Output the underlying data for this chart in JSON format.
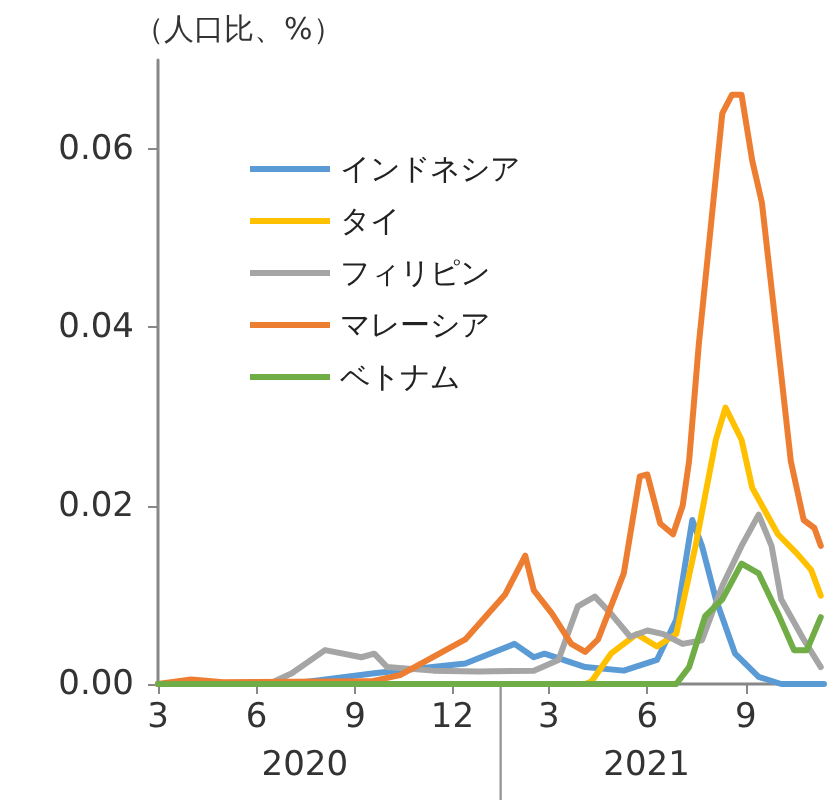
{
  "chart_data": {
    "type": "line",
    "ylabel": "（人口比、%）",
    "xlim": [
      "2020-03-01",
      "2021-11-13"
    ],
    "ylim": [
      0,
      0.07
    ],
    "xticks": [
      {
        "value": "2020-03",
        "label": "3"
      },
      {
        "value": "2020-06",
        "label": "6"
      },
      {
        "value": "2020-09",
        "label": "9"
      },
      {
        "value": "2020-12",
        "label": "12"
      },
      {
        "value": "2021-03",
        "label": "3"
      },
      {
        "value": "2021-06",
        "label": "6"
      },
      {
        "value": "2021-09",
        "label": "9"
      }
    ],
    "yticks": [
      {
        "value": 0,
        "label": "0.00"
      },
      {
        "value": 0.02,
        "label": "0.02"
      },
      {
        "value": 0.04,
        "label": "0.04"
      },
      {
        "value": 0.06,
        "label": "0.06"
      }
    ],
    "annotations": [
      "2020",
      "2021"
    ],
    "legend": "top left",
    "grid": false,
    "marker": "none",
    "line_style": "solid",
    "series": [
      {
        "name": "インドネシア",
        "color": "#5b9bd5",
        "x": [
          "2020-03-01",
          "2020-07-01",
          "2020-07-28",
          "2020-09-19",
          "2020-12-13",
          "2021-01-28",
          "2021-02-15",
          "2021-02-25",
          "2021-04-04",
          "2021-05-10",
          "2021-06-10",
          "2021-06-28",
          "2021-07-13",
          "2021-07-22",
          "2021-08-04",
          "2021-08-22",
          "2021-09-13",
          "2021-10-04",
          "2021-11-13"
        ],
        "values": [
          0,
          0,
          0.0004,
          0.0012,
          0.0023,
          0.0045,
          0.003,
          0.0034,
          0.0019,
          0.0015,
          0.0027,
          0.0072,
          0.0184,
          0.0155,
          0.0095,
          0.0034,
          0.0008,
          0,
          0
        ]
      },
      {
        "name": "タイ",
        "color": "#ffc000",
        "x": [
          "2020-03-01",
          "2021-04-04",
          "2021-04-10",
          "2021-04-28",
          "2021-05-22",
          "2021-06-10",
          "2021-06-28",
          "2021-07-16",
          "2021-08-04",
          "2021-08-13",
          "2021-08-28",
          "2021-09-07",
          "2021-10-01",
          "2021-10-19",
          "2021-11-01",
          "2021-11-10"
        ],
        "values": [
          0,
          0,
          0.0003,
          0.0034,
          0.0056,
          0.0042,
          0.0056,
          0.0155,
          0.0274,
          0.031,
          0.0274,
          0.022,
          0.0168,
          0.0146,
          0.0128,
          0.0099
        ]
      },
      {
        "name": "フィリピン",
        "color": "#a5a5a5",
        "x": [
          "2020-03-01",
          "2020-06-16",
          "2020-07-04",
          "2020-08-04",
          "2020-09-07",
          "2020-09-19",
          "2020-10-01",
          "2020-11-13",
          "2020-12-25",
          "2021-02-15",
          "2021-03-10",
          "2021-03-28",
          "2021-04-13",
          "2021-04-28",
          "2021-05-16",
          "2021-06-01",
          "2021-06-16",
          "2021-07-04",
          "2021-07-22",
          "2021-08-10",
          "2021-08-28",
          "2021-09-13",
          "2021-09-25",
          "2021-10-04",
          "2021-10-25",
          "2021-11-10"
        ],
        "values": [
          0,
          0.0002,
          0.0012,
          0.0038,
          0.003,
          0.0034,
          0.0019,
          0.0015,
          0.0014,
          0.0015,
          0.0027,
          0.0087,
          0.0098,
          0.0079,
          0.0053,
          0.006,
          0.0056,
          0.0045,
          0.0049,
          0.011,
          0.0155,
          0.019,
          0.0155,
          0.0095,
          0.005,
          0.0019
        ]
      },
      {
        "name": "マレーシア",
        "color": "#ed7d31",
        "x": [
          "2020-03-01",
          "2020-04-01",
          "2020-05-01",
          "2020-09-16",
          "2020-10-13",
          "2020-12-13",
          "2021-01-19",
          "2021-02-07",
          "2021-02-15",
          "2021-03-04",
          "2021-03-22",
          "2021-04-04",
          "2021-04-16",
          "2021-05-10",
          "2021-05-25",
          "2021-06-01",
          "2021-06-13",
          "2021-06-25",
          "2021-07-04",
          "2021-07-10",
          "2021-07-19",
          "2021-07-29",
          "2021-08-10",
          "2021-08-19",
          "2021-08-28",
          "2021-09-07",
          "2021-09-16",
          "2021-10-01",
          "2021-10-13",
          "2021-10-25",
          "2021-11-04",
          "2021-11-10"
        ],
        "values": [
          0,
          0.0005,
          0.0002,
          0.0003,
          0.001,
          0.005,
          0.01,
          0.0144,
          0.0105,
          0.0079,
          0.0045,
          0.0036,
          0.005,
          0.0124,
          0.0233,
          0.0235,
          0.018,
          0.0168,
          0.02,
          0.025,
          0.038,
          0.0498,
          0.064,
          0.0661,
          0.0661,
          0.0587,
          0.054,
          0.038,
          0.025,
          0.0184,
          0.0175,
          0.0155
        ]
      },
      {
        "name": "ベトナム",
        "color": "#70ad47",
        "x": [
          "2020-03-01",
          "2021-06-28",
          "2021-07-10",
          "2021-07-25",
          "2021-08-10",
          "2021-08-28",
          "2021-09-13",
          "2021-10-01",
          "2021-10-16",
          "2021-10-28",
          "2021-11-10"
        ],
        "values": [
          0,
          0,
          0.0019,
          0.0076,
          0.0095,
          0.0135,
          0.0124,
          0.0079,
          0.0038,
          0.0038,
          0.0075
        ]
      }
    ]
  }
}
